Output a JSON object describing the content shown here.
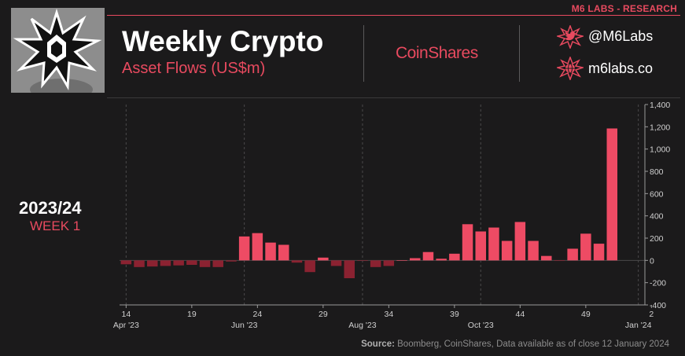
{
  "header": {
    "brand": "M6 LABS - RESEARCH",
    "title": "Weekly Crypto",
    "subtitle": "Asset Flows (US$m)",
    "partner": "CoinShares",
    "twitter_handle": "@M6Labs",
    "website": "m6labs.co",
    "accent_color": "#e84a5f"
  },
  "side": {
    "year": "2023/24",
    "week": "WEEK 1"
  },
  "footer": {
    "source_label": "Source:",
    "source_text": "Boomberg, CoinShares, Data available as of close 12 January 2024"
  },
  "chart_data": {
    "type": "bar",
    "title": "Weekly Crypto Asset Flows (US$m)",
    "ylim": [
      -400,
      1400
    ],
    "yticks": [
      "-400",
      "-200",
      "0",
      "200",
      "400",
      "600",
      "800",
      "1,000",
      "1,200",
      "1,400"
    ],
    "ytick_values": [
      -400,
      -200,
      0,
      200,
      400,
      600,
      800,
      1000,
      1200,
      1400
    ],
    "x_week_ticks": [
      {
        "week": "14",
        "index": 0
      },
      {
        "week": "19",
        "index": 5
      },
      {
        "week": "24",
        "index": 10
      },
      {
        "week": "29",
        "index": 15
      },
      {
        "week": "34",
        "index": 20
      },
      {
        "week": "39",
        "index": 25
      },
      {
        "week": "44",
        "index": 30
      },
      {
        "week": "49",
        "index": 35
      },
      {
        "week": "2",
        "index": 40
      }
    ],
    "x_month_labels": [
      {
        "label": "Apr '23",
        "index": 0
      },
      {
        "label": "Jun '23",
        "index": 9
      },
      {
        "label": "Aug '23",
        "index": 18
      },
      {
        "label": "Oct '23",
        "index": 27
      },
      {
        "label": "Jan '24",
        "index": 39
      }
    ],
    "values": [
      -35,
      -60,
      -55,
      -50,
      -45,
      -40,
      -60,
      -60,
      -10,
      215,
      245,
      160,
      140,
      -20,
      -105,
      25,
      -50,
      -160,
      -5,
      -60,
      -50,
      0,
      20,
      75,
      15,
      60,
      325,
      260,
      295,
      175,
      345,
      175,
      40,
      -5,
      105,
      240,
      150,
      1185
    ],
    "positive_color": "#ee4b64",
    "negative_color": "#8b2231"
  }
}
